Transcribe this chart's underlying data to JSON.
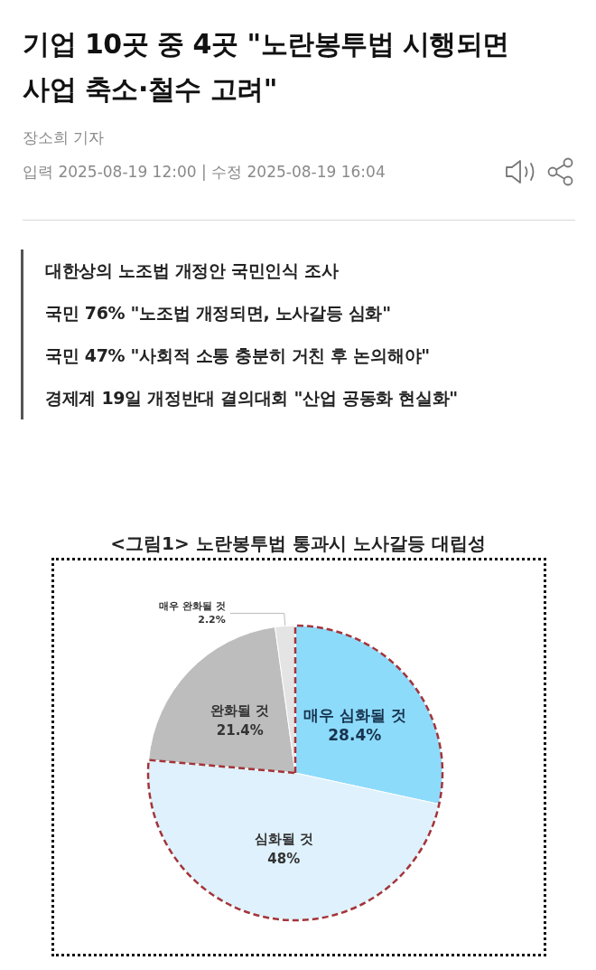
{
  "chart_data": {
    "type": "pie",
    "title": "<그림1> 노란봉투법 통과시 노사갈등 대립성",
    "categories": [
      "매우 심화될 것",
      "심화될 것",
      "완화될 것",
      "매우 완화될 것"
    ],
    "values": [
      28.4,
      48,
      21.4,
      2.2
    ],
    "value_labels": [
      "28.4%",
      "48%",
      "21.4%",
      "2.2%"
    ],
    "colors": [
      "#8ddbfb",
      "#def1fc",
      "#bdbdbd",
      "#e4e4e4"
    ],
    "annotations": [
      "기업 10곳 중 4곳 \"노란봉투법 시행되면 사업 축소·철수 고려\"",
      "장소희 기자",
      "입력 2025-08-19 12:00 | 수정 2025-08-19 16:04",
      "대한상의 노조법 개정안 국민인식 조사",
      "국민 76% \"노조법 개정되면, 노사갈등 심화\"",
      "국민 47% \"사회적 소통 충분히 거친 후 논의해야\"",
      "경제계 19일 개정반대 결의대회 \"산업 공동화 현실화\""
    ]
  }
}
